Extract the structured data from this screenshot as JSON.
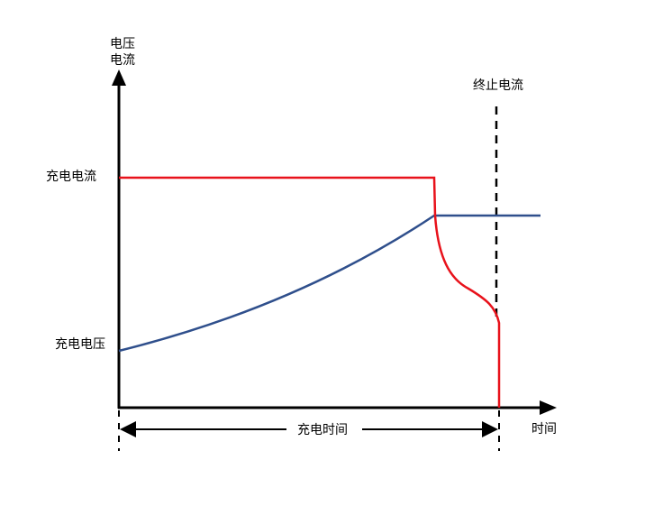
{
  "y_axis_label": {
    "line1": "电压",
    "line2": "电流"
  },
  "x_axis_label": "时间",
  "cutoff_label": "终止电流",
  "charge_current_label": "充电电流",
  "charge_voltage_label": "充电电压",
  "charge_time_label": "充电时间",
  "colors": {
    "current_curve": "#e8121b",
    "voltage_curve": "#2f4f8c",
    "axis": "#000000"
  }
}
